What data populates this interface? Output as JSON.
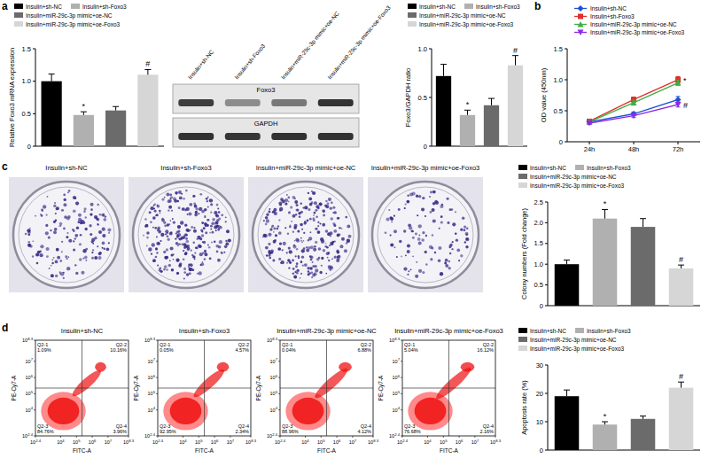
{
  "chart_data": [
    {
      "type": "bar",
      "y_label": "Relative Foxo3 mRNA expression",
      "categories": [
        "Insulin+sh-NC",
        "Insulin+sh-Foxo3",
        "Insulin+miR-29c-3p mimic+oe-NC",
        "Insulin+miR-29c-3p mimic+oe-Foxo3"
      ],
      "values": [
        1.0,
        0.48,
        0.55,
        1.1
      ],
      "errors": [
        0.11,
        0.05,
        0.06,
        0.08
      ],
      "colors": [
        "#000000",
        "#b0b0b0",
        "#6b6b6b",
        "#d6d6d6"
      ],
      "ylim": [
        0,
        1.5
      ],
      "yticks": [
        0,
        0.5,
        {
          "value": 1,
          "label": "1.0"
        },
        1.5
      ],
      "tick_labels": "y",
      "legend": "top",
      "annotations": [
        {
          "category": "Insulin+sh-Foxo3",
          "text": "*"
        },
        {
          "category": "Insulin+miR-29c-3p mimic+oe-Foxo3",
          "text": "#"
        }
      ]
    },
    {
      "type": "bar",
      "y_label": "Foxo3/GAPDH ratio",
      "categories": [
        "Insulin+sh-NC",
        "Insulin+sh-Foxo3",
        "Insulin+miR-29c-3p mimic+oe-NC",
        "Insulin+miR-29c-3p mimic+oe-Foxo3"
      ],
      "values": [
        0.72,
        0.32,
        0.42,
        0.83
      ],
      "errors": [
        0.12,
        0.05,
        0.07,
        0.1
      ],
      "colors": [
        "#000000",
        "#b0b0b0",
        "#6b6b6b",
        "#d6d6d6"
      ],
      "ylim": [
        0,
        1
      ],
      "yticks": [
        0,
        0.5,
        {
          "value": 1,
          "label": "1.0"
        }
      ],
      "tick_labels": "y",
      "legend": "top",
      "annotations": [
        {
          "category": "Insulin+sh-Foxo3",
          "text": "*"
        },
        {
          "category": "Insulin+miR-29c-3p mimic+oe-Foxo3",
          "text": "#"
        }
      ]
    },
    {
      "type": "line",
      "y_label": "OD value (450nm)",
      "categories": [
        "24h",
        "48h",
        "72h"
      ],
      "series": [
        {
          "name": "Insulin+sh-NC",
          "color": "#1f4fd6",
          "marker": "diamond",
          "values": [
            0.32,
            0.45,
            0.68
          ],
          "errors": [
            0.02,
            0.03,
            0.05
          ]
        },
        {
          "name": "Insulin+sh-Foxo3",
          "color": "#e0302a",
          "marker": "square",
          "values": [
            0.33,
            0.68,
            1.0
          ],
          "errors": [
            0.02,
            0.04,
            0.05
          ]
        },
        {
          "name": "Insulin+miR-29c-3p mimic+oe-NC",
          "color": "#3cb043",
          "marker": "triangle",
          "values": [
            0.32,
            0.63,
            0.95
          ],
          "errors": [
            0.02,
            0.04,
            0.04
          ]
        },
        {
          "name": "Insulin+miR-29c-3p mimic+oe-Foxo3",
          "color": "#8a2be2",
          "marker": "triangle-down",
          "values": [
            0.3,
            0.42,
            0.6
          ],
          "errors": [
            0.02,
            0.03,
            0.04
          ]
        }
      ],
      "ylim": [
        0,
        1.5
      ],
      "yticks": [
        0,
        0.5,
        {
          "value": 1,
          "label": "1.0"
        },
        1.5
      ],
      "legend": "top",
      "annotations": [
        {
          "series": "Insulin+sh-Foxo3",
          "category": "72h",
          "text": "*"
        },
        {
          "series": "Insulin+miR-29c-3p mimic+oe-Foxo3",
          "category": "72h",
          "text": "#"
        }
      ]
    },
    {
      "type": "bar",
      "y_label": "Colony numbers (Fold change)",
      "categories": [
        "Insulin+sh-NC",
        "Insulin+sh-Foxo3",
        "Insulin+miR-29c-3p mimic+oe-NC",
        "Insulin+miR-29c-3p mimic+oe-Foxo3"
      ],
      "values": [
        1.0,
        2.1,
        1.9,
        0.9
      ],
      "errors": [
        0.1,
        0.22,
        0.2,
        0.08
      ],
      "colors": [
        "#000000",
        "#b0b0b0",
        "#6b6b6b",
        "#d6d6d6"
      ],
      "ylim": [
        0,
        2.5
      ],
      "yticks": [
        0,
        0.5,
        {
          "value": 1,
          "label": "1.0"
        },
        1.5,
        {
          "value": 2,
          "label": "2.0"
        },
        2.5
      ],
      "tick_labels": "y",
      "legend": "top",
      "annotations": [
        {
          "category": "Insulin+sh-Foxo3",
          "text": "*"
        },
        {
          "category": "Insulin+miR-29c-3p mimic+oe-Foxo3",
          "text": "#"
        }
      ]
    },
    {
      "type": "bar",
      "y_label": "Apoptosis rate (%)",
      "categories": [
        "Insulin+sh-NC",
        "Insulin+sh-Foxo3",
        "Insulin+miR-29c-3p mimic+oe-NC",
        "Insulin+miR-29c-3p mimic+oe-Foxo3"
      ],
      "values": [
        19,
        9,
        11,
        22
      ],
      "errors": [
        2.2,
        1,
        1,
        2
      ],
      "colors": [
        "#000000",
        "#b0b0b0",
        "#6b6b6b",
        "#d6d6d6"
      ],
      "ylim": [
        0,
        30
      ],
      "yticks": [
        0,
        10,
        20,
        30
      ],
      "tick_labels": "y",
      "legend": "top",
      "annotations": [
        {
          "category": "Insulin+sh-Foxo3",
          "text": "*"
        },
        {
          "category": "Insulin+miR-29c-3p mimic+oe-Foxo3",
          "text": "#"
        }
      ]
    }
  ],
  "panel_labels": [
    "a",
    "b",
    "c",
    "d"
  ],
  "western_blot": {
    "lanes": [
      "Insulin+sh-NC",
      "Insulin+sh-Foxo3",
      "Insulin+miR-29c-3p mimic+oe-NC",
      "Insulin+miR-29c-3p mimic+oe-Foxo3"
    ],
    "rows": [
      "Foxo3",
      "GAPDH"
    ]
  },
  "colony_images": {
    "titles": [
      "Insulin+sh-NC",
      "Insulin+sh-Foxo3",
      "Insulin+miR-29c-3p mimic+oe-NC",
      "Insulin+miR-29c-3p mimic+oe-Foxo3"
    ]
  },
  "flow_cytometry": {
    "x_label": "FITC-A",
    "y_label": "PE-Cy7-A",
    "tick_base": "10",
    "ticks": [
      2.4,
      4,
      5,
      6,
      7,
      8.3
    ],
    "plots": [
      {
        "title": "Insulin+sh-NC",
        "quadrants": [
          {
            "name": "Q2-1",
            "value": "1.09%"
          },
          {
            "name": "Q2-2",
            "value": "10.16%"
          },
          {
            "name": "Q2-3",
            "value": "84.76%"
          },
          {
            "name": "Q2-4",
            "value": "3.96%"
          }
        ]
      },
      {
        "title": "Insulin+sh-Foxo3",
        "quadrants": [
          {
            "name": "Q2-1",
            "value": "0.05%"
          },
          {
            "name": "Q2-2",
            "value": "4.57%"
          },
          {
            "name": "Q2-3",
            "value": "92.95%"
          },
          {
            "name": "Q2-4",
            "value": "2.34%"
          }
        ]
      },
      {
        "title": "Insulin+miR-29c-3p mimic+oe-NC",
        "quadrants": [
          {
            "name": "Q2-1",
            "value": "0.04%"
          },
          {
            "name": "Q2-2",
            "value": "6.88%"
          },
          {
            "name": "Q2-3",
            "value": "88.96%"
          },
          {
            "name": "Q2-4",
            "value": "4.12%"
          }
        ]
      },
      {
        "title": "Insulin+miR-29c-3p mimic+oe-Foxo3",
        "quadrants": [
          {
            "name": "Q2-1",
            "value": "5.04%"
          },
          {
            "name": "Q2-2",
            "value": "16.12%"
          },
          {
            "name": "Q2-3",
            "value": "76.68%"
          },
          {
            "name": "Q2-4",
            "value": "2.16%"
          }
        ]
      }
    ]
  }
}
